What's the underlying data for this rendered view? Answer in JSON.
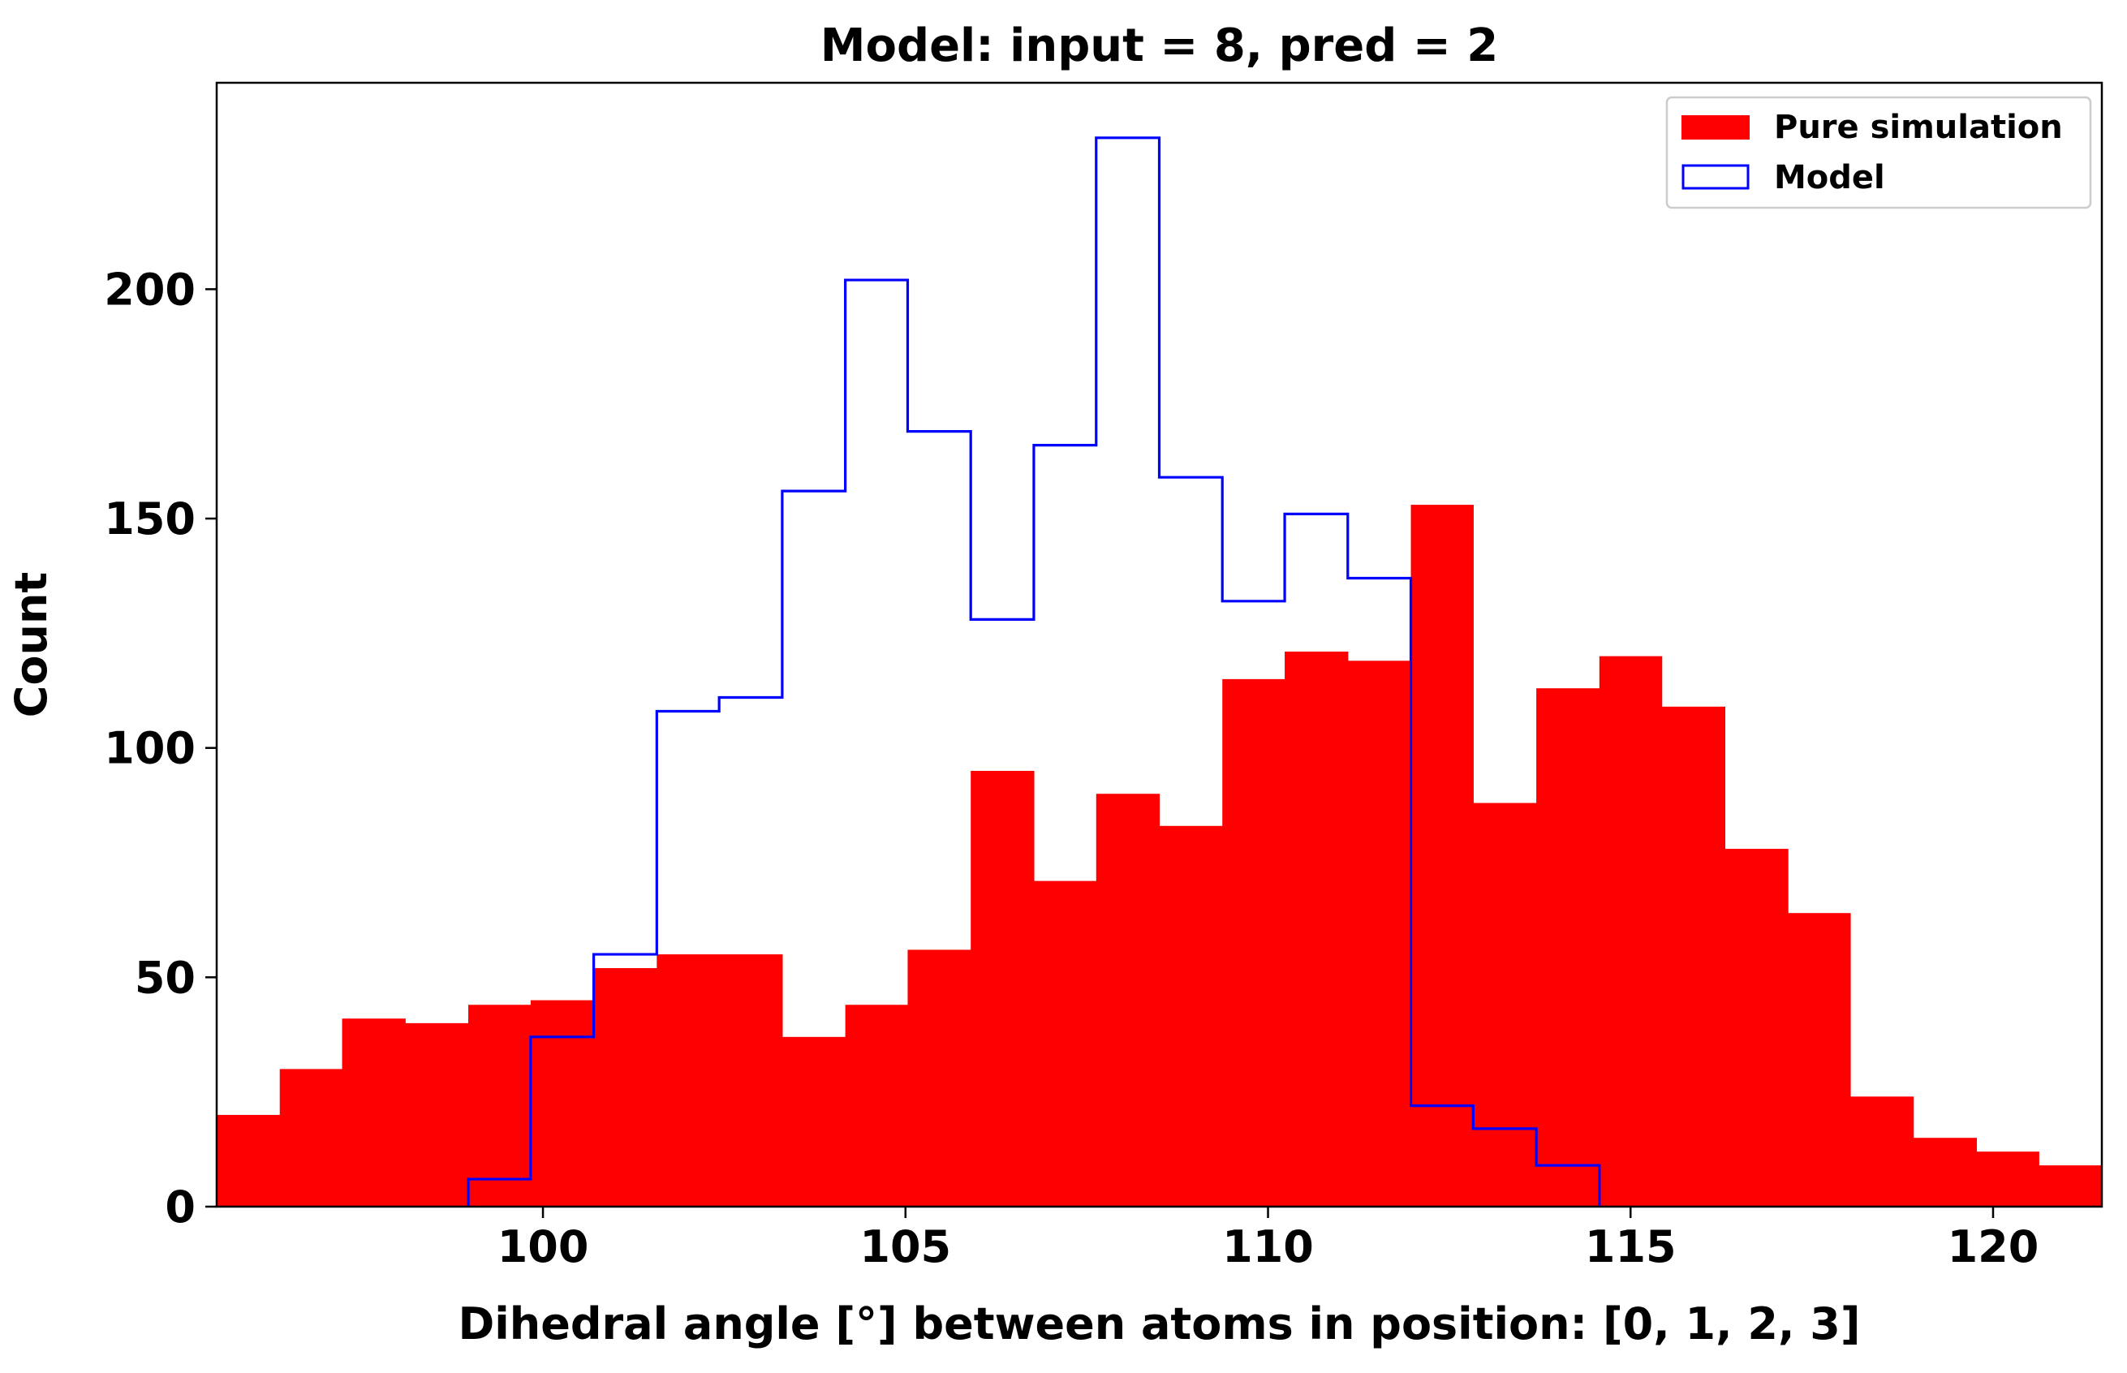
{
  "chart_data": {
    "type": "histogram",
    "title": "Model: input = 8, pred = 2",
    "xlabel": "Dihedral angle [°] between atoms in position: [0, 1, 2, 3]",
    "ylabel": "Count",
    "xlim": [
      95.5,
      121.5
    ],
    "ylim": [
      0,
      245
    ],
    "xticks": [
      100,
      105,
      110,
      115,
      120
    ],
    "yticks": [
      0,
      50,
      100,
      150,
      200
    ],
    "legend_position": "top-right",
    "series": [
      {
        "name": "Pure simulation",
        "style": "filled",
        "color": "#ff0000",
        "bin_edges": [
          95.5,
          96.37,
          97.23,
          98.1,
          98.97,
          99.83,
          100.7,
          101.57,
          102.43,
          103.3,
          104.17,
          105.03,
          105.9,
          106.77,
          107.63,
          108.5,
          109.37,
          110.23,
          111.1,
          111.97,
          112.83,
          113.7,
          114.57,
          115.43,
          116.3,
          117.17,
          118.03,
          118.9,
          119.77,
          120.63,
          121.5
        ],
        "values": [
          20,
          30,
          41,
          40,
          44,
          45,
          52,
          55,
          55,
          37,
          44,
          56,
          95,
          71,
          90,
          83,
          115,
          121,
          119,
          153,
          88,
          113,
          120,
          109,
          78,
          64,
          24,
          15,
          12,
          9
        ]
      },
      {
        "name": "Model",
        "style": "step",
        "color": "#0000ff",
        "bin_edges": [
          98.97,
          99.83,
          100.7,
          101.57,
          102.43,
          103.3,
          104.17,
          105.03,
          105.9,
          106.77,
          107.63,
          108.5,
          109.37,
          110.23,
          111.1,
          111.97,
          112.83,
          113.7,
          114.57
        ],
        "values": [
          6,
          37,
          55,
          108,
          111,
          156,
          202,
          169,
          128,
          166,
          233,
          159,
          132,
          151,
          137,
          22,
          17,
          9
        ]
      }
    ]
  }
}
